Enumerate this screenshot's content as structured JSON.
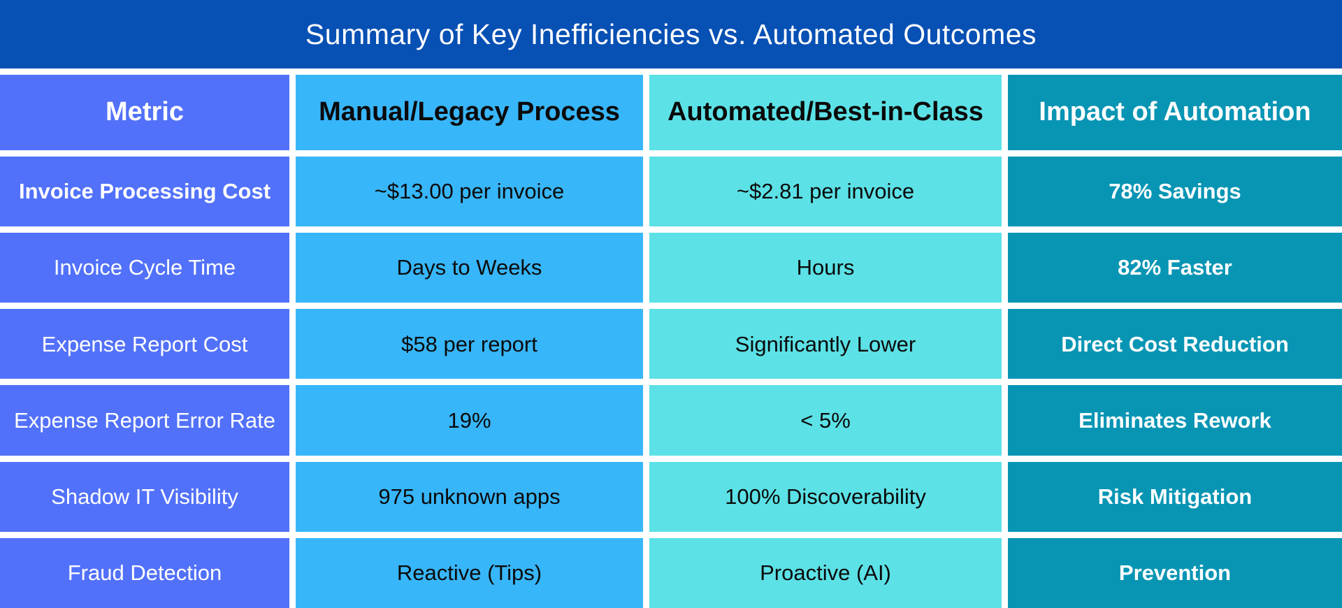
{
  "chart_data": {
    "type": "table",
    "title": "Summary of Key Inefficiencies vs. Automated Outcomes",
    "columns": [
      "Metric",
      "Manual/Legacy Process",
      "Automated/Best-in-Class",
      "Impact of Automation"
    ],
    "rows": [
      [
        "Invoice Processing Cost",
        "~$13.00 per invoice",
        "~$2.81 per invoice",
        "78% Savings"
      ],
      [
        "Invoice Cycle Time",
        "Days to Weeks",
        "Hours",
        "82% Faster"
      ],
      [
        "Expense Report Cost",
        "$58 per report",
        "Significantly Lower",
        "Direct Cost Reduction"
      ],
      [
        "Expense Report Error Rate",
        "19%",
        "< 5%",
        "Eliminates Rework"
      ],
      [
        "Shadow IT Visibility",
        "975 unknown apps",
        "100% Discoverability",
        "Risk Mitigation"
      ],
      [
        "Fraud Detection",
        "Reactive (Tips)",
        "Proactive (AI)",
        "Prevention"
      ]
    ],
    "colors": {
      "title_bg": "#0750b4",
      "metric_col": "#5271fa",
      "manual_col": "#38b6fa",
      "automated_col": "#5ce1e6",
      "impact_col": "#0895b4"
    },
    "layout": {
      "legend": "none",
      "grid": "off",
      "header_text_dark_columns": [
        "Manual/Legacy Process",
        "Automated/Best-in-Class"
      ],
      "header_text_light_columns": [
        "Metric",
        "Impact of Automation"
      ]
    }
  }
}
